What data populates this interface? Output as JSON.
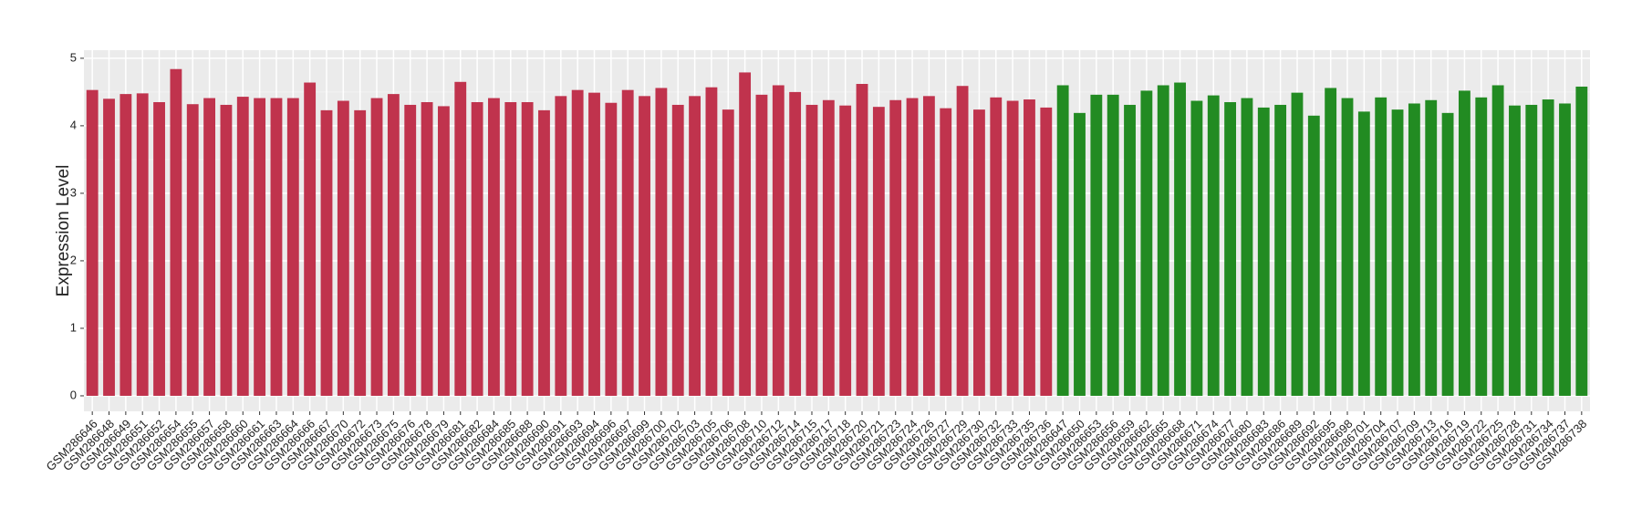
{
  "chart_data": {
    "type": "bar",
    "y_label": "Expression Level",
    "categories": [
      "GSM286646",
      "GSM286648",
      "GSM286649",
      "GSM286651",
      "GSM286652",
      "GSM286654",
      "GSM286655",
      "GSM286657",
      "GSM286658",
      "GSM286660",
      "GSM286661",
      "GSM286663",
      "GSM286664",
      "GSM286666",
      "GSM286667",
      "GSM286670",
      "GSM286672",
      "GSM286673",
      "GSM286675",
      "GSM286676",
      "GSM286678",
      "GSM286679",
      "GSM286681",
      "GSM286682",
      "GSM286684",
      "GSM286685",
      "GSM286688",
      "GSM286690",
      "GSM286691",
      "GSM286693",
      "GSM286694",
      "GSM286696",
      "GSM286697",
      "GSM286699",
      "GSM286700",
      "GSM286702",
      "GSM286703",
      "GSM286705",
      "GSM286706",
      "GSM286708",
      "GSM286710",
      "GSM286712",
      "GSM286714",
      "GSM286715",
      "GSM286717",
      "GSM286718",
      "GSM286720",
      "GSM286721",
      "GSM286723",
      "GSM286724",
      "GSM286726",
      "GSM286727",
      "GSM286729",
      "GSM286730",
      "GSM286732",
      "GSM286733",
      "GSM286735",
      "GSM286736",
      "GSM286647",
      "GSM286650",
      "GSM286653",
      "GSM286656",
      "GSM286659",
      "GSM286662",
      "GSM286665",
      "GSM286668",
      "GSM286671",
      "GSM286674",
      "GSM286677",
      "GSM286680",
      "GSM286683",
      "GSM286686",
      "GSM286689",
      "GSM286692",
      "GSM286695",
      "GSM286698",
      "GSM286701",
      "GSM286704",
      "GSM286707",
      "GSM286709",
      "GSM286713",
      "GSM286716",
      "GSM286719",
      "GSM286722",
      "GSM286725",
      "GSM286728",
      "GSM286731",
      "GSM286734",
      "GSM286737",
      "GSM286738"
    ],
    "values": [
      4.53,
      4.4,
      4.47,
      4.48,
      4.35,
      4.84,
      4.32,
      4.41,
      4.31,
      4.43,
      4.41,
      4.41,
      4.41,
      4.64,
      4.23,
      4.37,
      4.23,
      4.41,
      4.47,
      4.31,
      4.35,
      4.29,
      4.65,
      4.35,
      4.41,
      4.35,
      4.35,
      4.23,
      4.44,
      4.53,
      4.49,
      4.34,
      4.53,
      4.44,
      4.56,
      4.31,
      4.44,
      4.57,
      4.24,
      4.79,
      4.46,
      4.6,
      4.5,
      4.31,
      4.38,
      4.3,
      4.62,
      4.28,
      4.38,
      4.41,
      4.44,
      4.26,
      4.59,
      4.24,
      4.42,
      4.37,
      4.39,
      4.27,
      4.6,
      4.19,
      4.46,
      4.46,
      4.31,
      4.52,
      4.6,
      4.64,
      4.37,
      4.45,
      4.35,
      4.41,
      4.27,
      4.31,
      4.49,
      4.15,
      4.56,
      4.41,
      4.21,
      4.42,
      4.24,
      4.33,
      4.38,
      4.19,
      4.52,
      4.42,
      4.6,
      4.3,
      4.31,
      4.39,
      4.33,
      4.58
    ],
    "colors": [
      "#c0334d",
      "#c0334d",
      "#c0334d",
      "#c0334d",
      "#c0334d",
      "#c0334d",
      "#c0334d",
      "#c0334d",
      "#c0334d",
      "#c0334d",
      "#c0334d",
      "#c0334d",
      "#c0334d",
      "#c0334d",
      "#c0334d",
      "#c0334d",
      "#c0334d",
      "#c0334d",
      "#c0334d",
      "#c0334d",
      "#c0334d",
      "#c0334d",
      "#c0334d",
      "#c0334d",
      "#c0334d",
      "#c0334d",
      "#c0334d",
      "#c0334d",
      "#c0334d",
      "#c0334d",
      "#c0334d",
      "#c0334d",
      "#c0334d",
      "#c0334d",
      "#c0334d",
      "#c0334d",
      "#c0334d",
      "#c0334d",
      "#c0334d",
      "#c0334d",
      "#c0334d",
      "#c0334d",
      "#c0334d",
      "#c0334d",
      "#c0334d",
      "#c0334d",
      "#c0334d",
      "#c0334d",
      "#c0334d",
      "#c0334d",
      "#c0334d",
      "#c0334d",
      "#c0334d",
      "#c0334d",
      "#c0334d",
      "#c0334d",
      "#c0334d",
      "#c0334d",
      "#228b22",
      "#228b22",
      "#228b22",
      "#228b22",
      "#228b22",
      "#228b22",
      "#228b22",
      "#228b22",
      "#228b22",
      "#228b22",
      "#228b22",
      "#228b22",
      "#228b22",
      "#228b22",
      "#228b22",
      "#228b22",
      "#228b22",
      "#228b22",
      "#228b22",
      "#228b22",
      "#228b22",
      "#228b22",
      "#228b22",
      "#228b22",
      "#228b22",
      "#228b22",
      "#228b22",
      "#228b22",
      "#228b22",
      "#228b22",
      "#228b22",
      "#228b22"
    ],
    "ylim": [
      -0.23,
      5.12
    ],
    "yticks": [
      0,
      1,
      2,
      3,
      4,
      5
    ],
    "grid": true
  }
}
